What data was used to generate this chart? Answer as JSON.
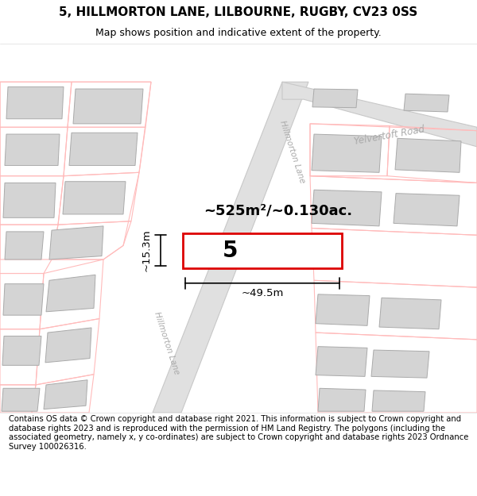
{
  "title_line1": "5, HILLMORTON LANE, LILBOURNE, RUGBY, CV23 0SS",
  "title_line2": "Map shows position and indicative extent of the property.",
  "footer_text": "Contains OS data © Crown copyright and database right 2021. This information is subject to Crown copyright and database rights 2023 and is reproduced with the permission of HM Land Registry. The polygons (including the associated geometry, namely x, y co-ordinates) are subject to Crown copyright and database rights 2023 Ordnance Survey 100026316.",
  "area_text": "~525m²/~0.130ac.",
  "label_5": "5",
  "dim_width": "~49.5m",
  "dim_height": "~15.3m",
  "road_label_upper": "Hillmorton Lane",
  "road_label_lower": "Hillmorton Lane",
  "road_label_right": "Yelvertoft Road",
  "title_fontsize": 11,
  "subtitle_fontsize": 9,
  "footer_fontsize": 7.2,
  "road_fill": "#e0e0e0",
  "road_edge": "#c8c8c8",
  "building_fill": "#d4d4d4",
  "building_edge": "#aaaaaa",
  "plot_outline": "#ffbbbb",
  "plot_fill": "none",
  "red_rect_edge": "#dd0000",
  "road_text_color": "#aaaaaa",
  "dim_color": "#000000",
  "area_color": "#000000"
}
